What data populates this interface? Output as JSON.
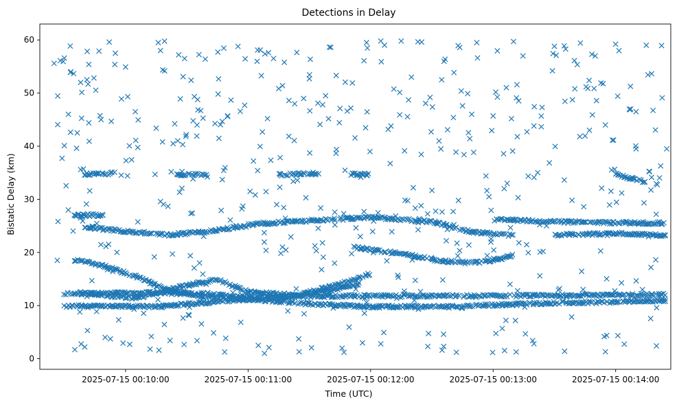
{
  "chart_data": {
    "type": "scatter",
    "title": "Detections in Delay",
    "xlabel": "Time (UTC)",
    "ylabel": "Bistatic Delay (km)",
    "marker": "x",
    "color": "#1f77b4",
    "x_time_format": "YYYY-MM-DD HH:MM:SS",
    "xlim": [
      "2025-07-15 00:09:18",
      "2025-07-15 00:14:27"
    ],
    "ylim": [
      -2,
      63
    ],
    "xticks": [
      "2025-07-15 00:10:00",
      "2025-07-15 00:11:00",
      "2025-07-15 00:12:00",
      "2025-07-15 00:13:00",
      "2025-07-15 00:14:00"
    ],
    "yticks": [
      0,
      10,
      20,
      30,
      40,
      50,
      60
    ],
    "grid": false,
    "legend": "none",
    "tracks": [
      {
        "t": [
          [
            "2025-07-15 00:09:30",
            9.9
          ],
          [
            "2025-07-15 00:10:15",
            9.8
          ],
          [
            "2025-07-15 00:11:00",
            11.2
          ],
          [
            "2025-07-15 00:11:30",
            10.3
          ],
          [
            "2025-07-15 00:12:00",
            9.8
          ],
          [
            "2025-07-15 00:12:40",
            9.8
          ],
          [
            "2025-07-15 00:13:20",
            10.4
          ],
          [
            "2025-07-15 00:14:00",
            10.7
          ],
          [
            "2025-07-15 00:14:25",
            11.0
          ]
        ]
      },
      {
        "t": [
          [
            "2025-07-15 00:09:30",
            12.2
          ],
          [
            "2025-07-15 00:10:10",
            12.4
          ],
          [
            "2025-07-15 00:10:40",
            12.2
          ],
          [
            "2025-07-15 00:11:05",
            11.4
          ],
          [
            "2025-07-15 00:11:40",
            11.8
          ],
          [
            "2025-07-15 00:12:20",
            11.8
          ],
          [
            "2025-07-15 00:12:50",
            11.8
          ],
          [
            "2025-07-15 00:13:30",
            11.9
          ],
          [
            "2025-07-15 00:14:25",
            12.1
          ]
        ]
      },
      {
        "t": [
          [
            "2025-07-15 00:09:35",
            18.6
          ],
          [
            "2025-07-15 00:09:50",
            17.4
          ],
          [
            "2025-07-15 00:10:05",
            15.5
          ],
          [
            "2025-07-15 00:10:20",
            13.0
          ],
          [
            "2025-07-15 00:10:40",
            11.6
          ],
          [
            "2025-07-15 00:11:00",
            11.2
          ],
          [
            "2025-07-15 00:11:20",
            11.7
          ],
          [
            "2025-07-15 00:11:40",
            12.8
          ],
          [
            "2025-07-15 00:11:55",
            14.2
          ]
        ]
      },
      {
        "t": [
          [
            "2025-07-15 00:09:38",
            12.4
          ],
          [
            "2025-07-15 00:10:05",
            11.4
          ],
          [
            "2025-07-15 00:10:30",
            13.8
          ],
          [
            "2025-07-15 00:10:45",
            14.9
          ],
          [
            "2025-07-15 00:11:00",
            12.6
          ],
          [
            "2025-07-15 00:11:25",
            12.0
          ],
          [
            "2025-07-15 00:11:50",
            14.6
          ],
          [
            "2025-07-15 00:12:00",
            16.0
          ]
        ]
      },
      {
        "t": [
          [
            "2025-07-15 00:11:52",
            21.0
          ],
          [
            "2025-07-15 00:12:05",
            20.3
          ],
          [
            "2025-07-15 00:12:20",
            19.4
          ],
          [
            "2025-07-15 00:12:35",
            18.4
          ],
          [
            "2025-07-15 00:12:50",
            18.0
          ],
          [
            "2025-07-15 00:13:00",
            18.5
          ],
          [
            "2025-07-15 00:13:10",
            19.4
          ]
        ]
      },
      {
        "t": [
          [
            "2025-07-15 00:09:35",
            27.0
          ],
          [
            "2025-07-15 00:09:50",
            27.0
          ]
        ]
      },
      {
        "t": [
          [
            "2025-07-15 00:09:40",
            24.8
          ],
          [
            "2025-07-15 00:10:00",
            24.0
          ],
          [
            "2025-07-15 00:10:20",
            23.3
          ],
          [
            "2025-07-15 00:10:40",
            23.9
          ],
          [
            "2025-07-15 00:11:05",
            25.4
          ],
          [
            "2025-07-15 00:11:30",
            26.0
          ],
          [
            "2025-07-15 00:12:00",
            26.6
          ],
          [
            "2025-07-15 00:12:30",
            25.8
          ],
          [
            "2025-07-15 00:12:50",
            23.8
          ],
          [
            "2025-07-15 00:13:10",
            23.2
          ]
        ]
      },
      {
        "t": [
          [
            "2025-07-15 00:13:00",
            26.2
          ],
          [
            "2025-07-15 00:13:30",
            25.8
          ],
          [
            "2025-07-15 00:14:00",
            25.6
          ],
          [
            "2025-07-15 00:14:25",
            25.5
          ]
        ]
      },
      {
        "t": [
          [
            "2025-07-15 00:13:30",
            23.3
          ],
          [
            "2025-07-15 00:14:00",
            23.6
          ],
          [
            "2025-07-15 00:14:25",
            23.2
          ]
        ]
      },
      {
        "t": [
          [
            "2025-07-15 00:09:40",
            34.7
          ],
          [
            "2025-07-15 00:09:55",
            34.9
          ]
        ]
      },
      {
        "t": [
          [
            "2025-07-15 00:10:25",
            34.7
          ],
          [
            "2025-07-15 00:10:40",
            34.7
          ]
        ]
      },
      {
        "t": [
          [
            "2025-07-15 00:11:15",
            34.6
          ],
          [
            "2025-07-15 00:11:35",
            34.9
          ]
        ]
      },
      {
        "t": [
          [
            "2025-07-15 00:11:50",
            34.7
          ],
          [
            "2025-07-15 00:12:00",
            34.7
          ]
        ]
      },
      {
        "t": [
          [
            "2025-07-15 00:14:00",
            34.7
          ],
          [
            "2025-07-15 00:14:15",
            33.2
          ]
        ]
      }
    ],
    "scatter_sample": [
      [
        "2025-07-15 00:09:25",
        55.6
      ],
      [
        "2025-07-15 00:09:28",
        56.1
      ],
      [
        "2025-07-15 00:09:30",
        56.6
      ],
      [
        "2025-07-15 00:09:33",
        53.9
      ],
      [
        "2025-07-15 00:09:38",
        52.0
      ],
      [
        "2025-07-15 00:09:42",
        55.4
      ],
      [
        "2025-07-15 00:09:47",
        57.9
      ],
      [
        "2025-07-15 00:09:52",
        59.6
      ],
      [
        "2025-07-15 00:09:55",
        57.5
      ],
      [
        "2025-07-15 00:10:00",
        54.9
      ],
      [
        "2025-07-15 00:10:16",
        59.5
      ],
      [
        "2025-07-15 00:10:26",
        57.2
      ],
      [
        "2025-07-15 00:11:06",
        58.1
      ],
      [
        "2025-07-15 00:11:10",
        57.6
      ],
      [
        "2025-07-15 00:11:58",
        59.5
      ],
      [
        "2025-07-15 00:12:05",
        59.8
      ],
      [
        "2025-07-15 00:12:15",
        59.8
      ],
      [
        "2025-07-15 00:12:25",
        59.6
      ],
      [
        "2025-07-15 00:12:52",
        59.5
      ],
      [
        "2025-07-15 00:13:10",
        59.7
      ],
      [
        "2025-07-15 00:13:30",
        58.8
      ],
      [
        "2025-07-15 00:14:00",
        59.2
      ],
      [
        "2025-07-15 00:14:15",
        59.0
      ],
      [
        "2025-07-15 00:13:50",
        57.0
      ],
      [
        "2025-07-15 00:09:30",
        40.1
      ],
      [
        "2025-07-15 00:09:36",
        39.6
      ],
      [
        "2025-07-15 00:09:38",
        35.6
      ],
      [
        "2025-07-15 00:09:42",
        44.4
      ],
      [
        "2025-07-15 00:09:48",
        45.0
      ],
      [
        "2025-07-15 00:09:58",
        48.9
      ],
      [
        "2025-07-15 00:10:05",
        41.1
      ],
      [
        "2025-07-15 00:10:15",
        43.4
      ],
      [
        "2025-07-15 00:10:28",
        40.3
      ],
      [
        "2025-07-15 00:10:35",
        44.0
      ],
      [
        "2025-07-15 00:10:50",
        45.7
      ],
      [
        "2025-07-15 00:11:07",
        42.7
      ],
      [
        "2025-07-15 00:11:20",
        48.6
      ],
      [
        "2025-07-15 00:11:30",
        52.7
      ],
      [
        "2025-07-15 00:11:45",
        47.1
      ],
      [
        "2025-07-15 00:12:10",
        43.8
      ],
      [
        "2025-07-15 00:12:20",
        53.0
      ],
      [
        "2025-07-15 00:12:45",
        47.6
      ],
      [
        "2025-07-15 00:13:00",
        45.7
      ],
      [
        "2025-07-15 00:13:20",
        43.8
      ],
      [
        "2025-07-15 00:13:40",
        50.8
      ],
      [
        "2025-07-15 00:13:55",
        44.0
      ],
      [
        "2025-07-15 00:14:10",
        46.5
      ],
      [
        "2025-07-15 00:14:25",
        39.5
      ],
      [
        "2025-07-15 00:09:40",
        2.2
      ],
      [
        "2025-07-15 00:09:50",
        4.0
      ],
      [
        "2025-07-15 00:10:02",
        2.7
      ],
      [
        "2025-07-15 00:10:12",
        1.8
      ],
      [
        "2025-07-15 00:10:35",
        3.4
      ],
      [
        "2025-07-15 00:11:05",
        2.5
      ],
      [
        "2025-07-15 00:11:08",
        1.0
      ],
      [
        "2025-07-15 00:11:25",
        1.3
      ],
      [
        "2025-07-15 00:11:47",
        1.2
      ],
      [
        "2025-07-15 00:12:05",
        2.8
      ],
      [
        "2025-07-15 00:12:28",
        2.3
      ],
      [
        "2025-07-15 00:12:35",
        1.6
      ],
      [
        "2025-07-15 00:12:42",
        1.2
      ],
      [
        "2025-07-15 00:13:20",
        2.8
      ],
      [
        "2025-07-15 00:13:35",
        1.4
      ],
      [
        "2025-07-15 00:13:55",
        1.3
      ],
      [
        "2025-07-15 00:14:20",
        2.4
      ]
    ]
  }
}
